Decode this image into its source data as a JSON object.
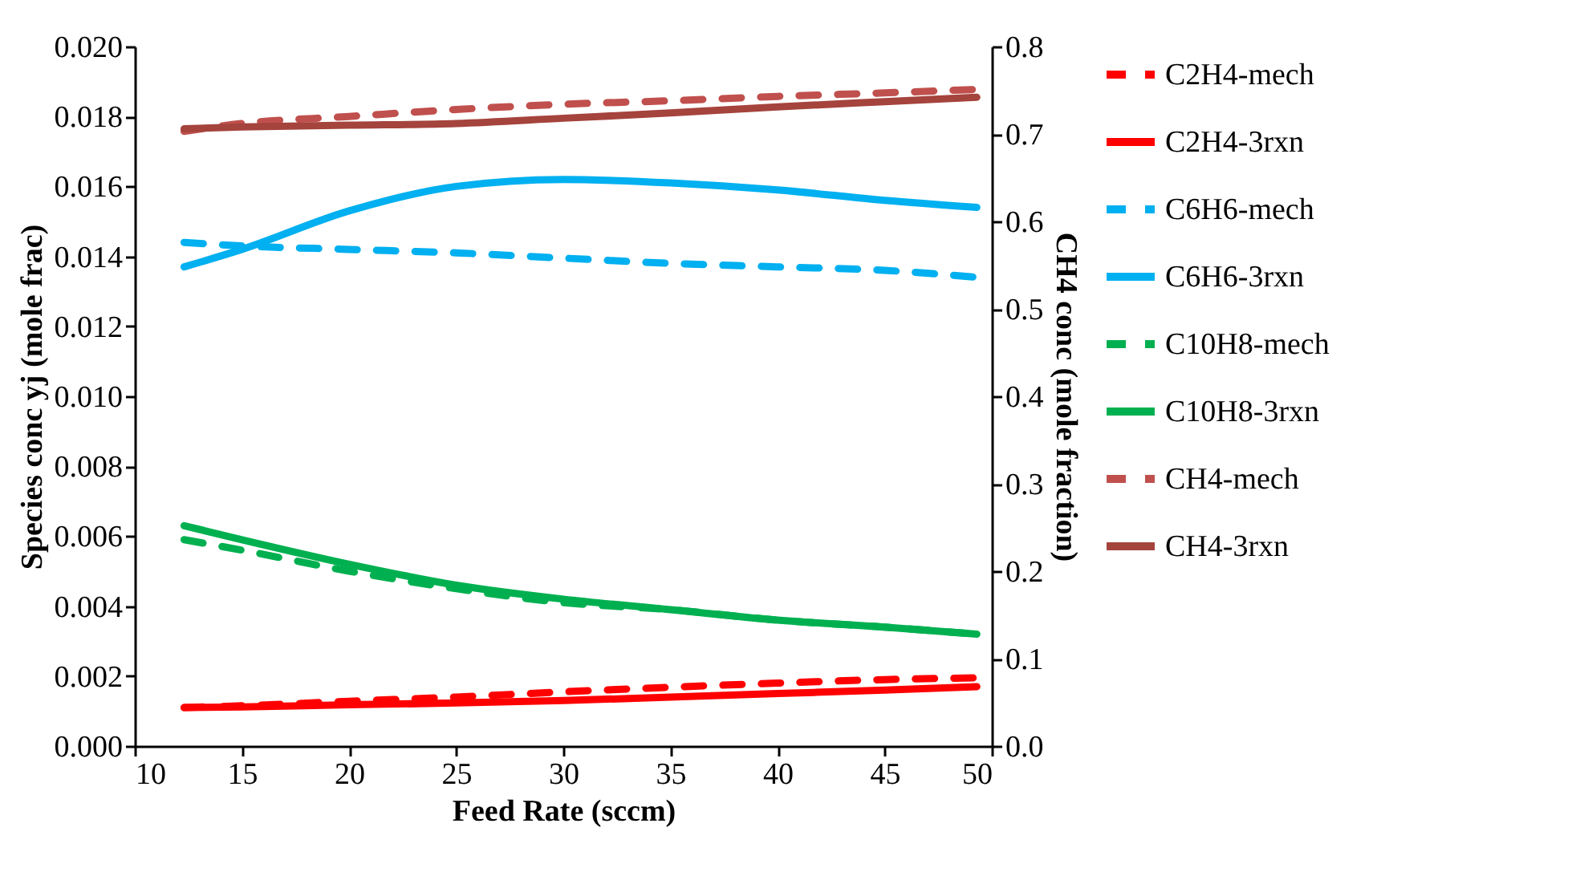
{
  "chart_data": {
    "type": "line",
    "xlabel": "Feed Rate (sccm)",
    "ylabel": "Species conc yj (mole frac)",
    "y2label": "CH4 conc (mole fraction)",
    "x": [
      12.3,
      15,
      20,
      25,
      30,
      35,
      40,
      45,
      49.3
    ],
    "xlim": [
      10,
      50
    ],
    "xticks": [
      10,
      15,
      20,
      25,
      30,
      35,
      40,
      45,
      50
    ],
    "ylim": [
      0,
      0.02
    ],
    "yticks": [
      {
        "value": 0,
        "label": "0.000"
      },
      {
        "value": 0.002,
        "label": "0.002"
      },
      {
        "value": 0.004,
        "label": "0.004"
      },
      {
        "value": 0.006,
        "label": "0.006"
      },
      {
        "value": 0.008,
        "label": "0.008"
      },
      {
        "value": 0.01,
        "label": "0.010"
      },
      {
        "value": 0.012,
        "label": "0.012"
      },
      {
        "value": 0.014,
        "label": "0.014"
      },
      {
        "value": 0.016,
        "label": "0.016"
      },
      {
        "value": 0.018,
        "label": "0.018"
      },
      {
        "value": 0.02,
        "label": "0.020"
      }
    ],
    "y2lim": [
      0,
      0.8
    ],
    "y2ticks": [
      {
        "value": 0,
        "label": "0.0"
      },
      0.1,
      0.2,
      0.3,
      0.4,
      0.5,
      0.6,
      0.7,
      0.8
    ],
    "legend": "right",
    "grid": false,
    "series": [
      {
        "name": "C2H4-mech",
        "color": "#ff0000",
        "line_style": "dashed",
        "values": [
          0.0011,
          0.00115,
          0.00128,
          0.0014,
          0.00155,
          0.00168,
          0.0018,
          0.0019,
          0.00195
        ]
      },
      {
        "name": "C2H4-3rxn",
        "color": "#ff0000",
        "line_style": "solid",
        "values": [
          0.0011,
          0.00112,
          0.00118,
          0.00123,
          0.0013,
          0.0014,
          0.0015,
          0.0016,
          0.0017
        ]
      },
      {
        "name": "C6H6-mech",
        "color": "#00b0f0",
        "line_style": "dashed",
        "values": [
          0.0144,
          0.0143,
          0.0142,
          0.0141,
          0.01395,
          0.0138,
          0.0137,
          0.0136,
          0.0134
        ]
      },
      {
        "name": "C6H6-3rxn",
        "color": "#00b0f0",
        "line_style": "solid",
        "values": [
          0.0137,
          0.0142,
          0.0153,
          0.016,
          0.0162,
          0.0161,
          0.0159,
          0.0156,
          0.0154
        ]
      },
      {
        "name": "C10H8-mech",
        "color": "#00b050",
        "line_style": "dashed",
        "values": [
          0.0059,
          0.0056,
          0.005,
          0.0045,
          0.0041,
          0.0039,
          0.0036,
          0.0034,
          0.0032
        ]
      },
      {
        "name": "C10H8-3rxn",
        "color": "#00b050",
        "line_style": "solid",
        "values": [
          0.0063,
          0.0059,
          0.0052,
          0.0046,
          0.0042,
          0.0039,
          0.0036,
          0.0034,
          0.0032
        ]
      },
      {
        "name": "CH4-mech",
        "color": "#c0504d",
        "line_style": "dashed",
        "axis": "y2",
        "values": [
          0.703,
          0.712,
          0.72,
          0.728,
          0.734,
          0.738,
          0.743,
          0.747,
          0.751
        ]
      },
      {
        "name": "CH4-3rxn",
        "color": "#a5433d",
        "line_style": "solid",
        "axis": "y2",
        "values": [
          0.706,
          0.708,
          0.71,
          0.712,
          0.718,
          0.724,
          0.731,
          0.737,
          0.742
        ]
      }
    ]
  }
}
